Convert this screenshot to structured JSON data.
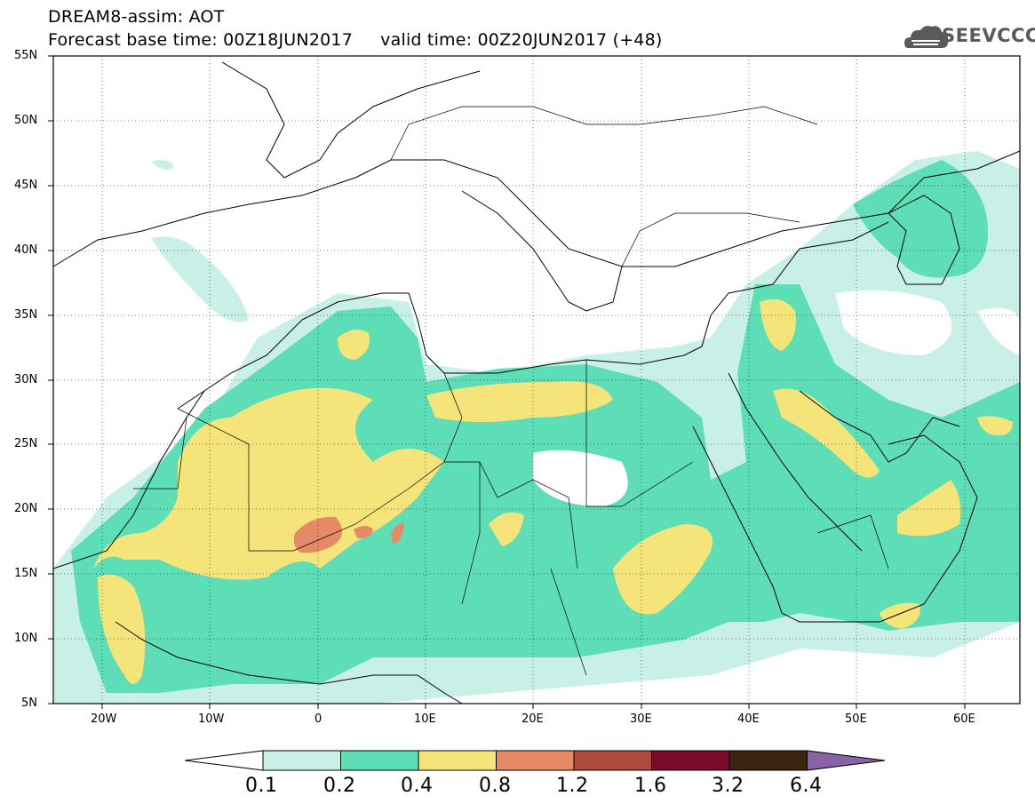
{
  "header": {
    "title_line1": "DREAM8-assim: AOT",
    "title_line2": "Forecast base time: 00Z18JUN2017     valid time: 00Z20JUN2017 (+48)"
  },
  "logo": {
    "text": "SEEVCCC",
    "icon": "cloud-icon"
  },
  "map": {
    "lon_range": [
      -25,
      65
    ],
    "lat_range": [
      5,
      55
    ],
    "lat_labels": [
      "55N",
      "50N",
      "45N",
      "40N",
      "35N",
      "30N",
      "25N",
      "20N",
      "15N",
      "10N",
      "5N"
    ],
    "lon_labels": [
      "20W",
      "10W",
      "0",
      "10E",
      "20E",
      "30E",
      "40E",
      "50E",
      "60E"
    ],
    "fields": [
      {
        "level": "0.1-0.2",
        "color": "#c8f0e6"
      },
      {
        "level": "0.2-0.4",
        "color": "#5ddeb6"
      },
      {
        "level": "0.4-0.8",
        "color": "#f5e479"
      },
      {
        "level": "0.8-1.2",
        "color": "#e58a64"
      }
    ]
  },
  "colorbar": {
    "labels": [
      "0.1",
      "0.2",
      "0.4",
      "0.8",
      "1.2",
      "1.6",
      "3.2",
      "6.4"
    ],
    "colors": [
      "#ffffff",
      "#c8f0e6",
      "#5ddeb6",
      "#f5e479",
      "#e58a64",
      "#ad4a3a",
      "#7a0a2a",
      "#3b2410",
      "#8a62a6"
    ]
  }
}
